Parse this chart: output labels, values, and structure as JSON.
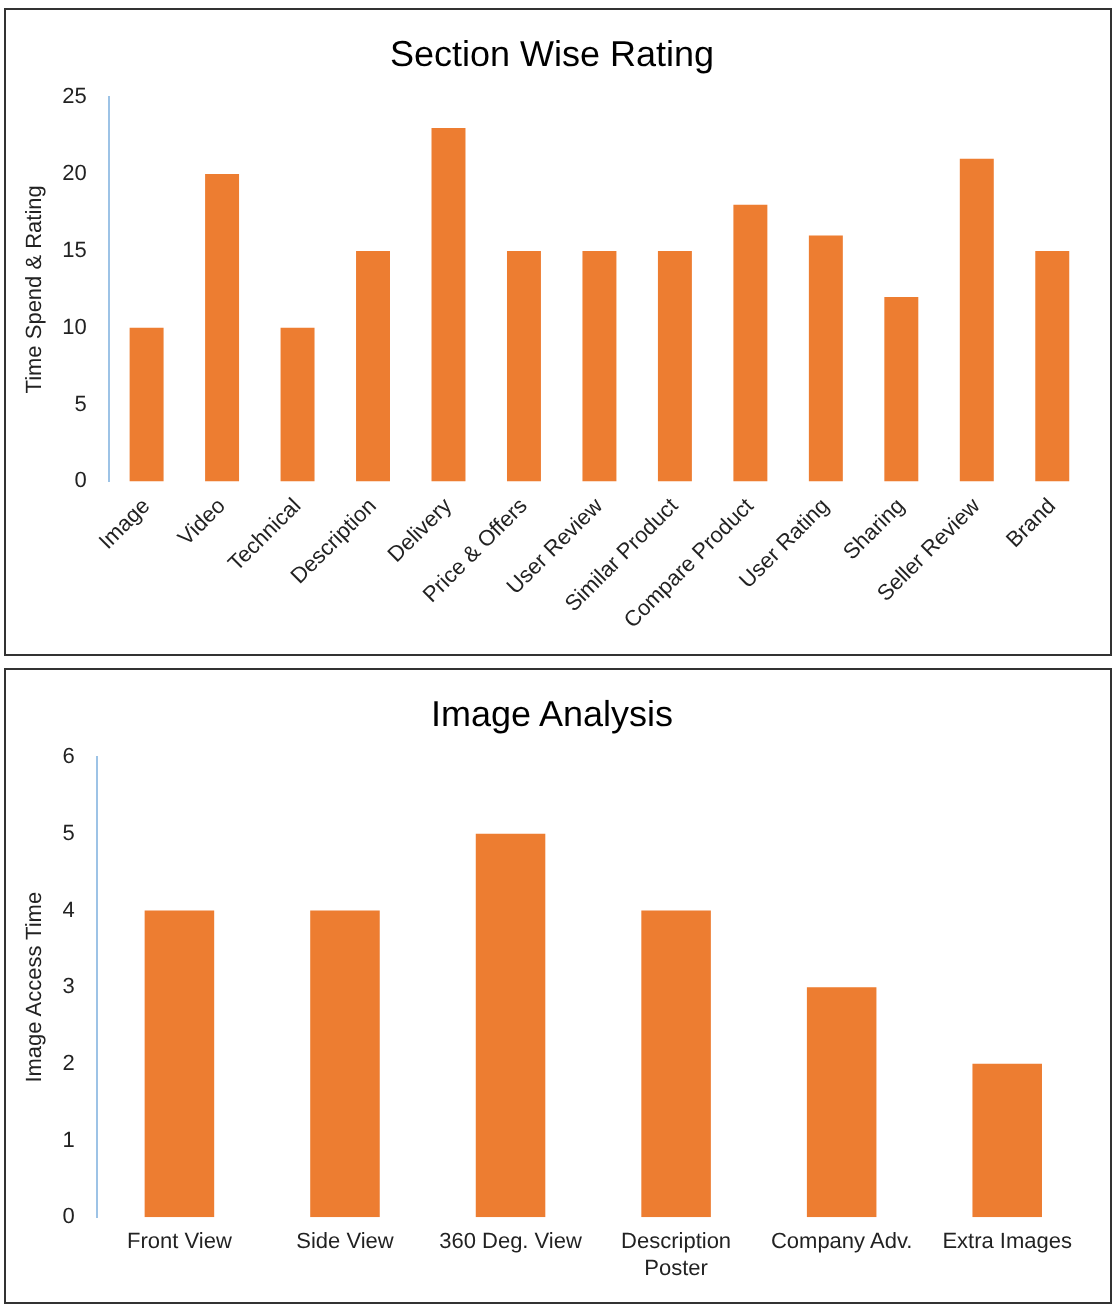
{
  "chart_data": [
    {
      "type": "bar",
      "title": "Section Wise Rating",
      "ylabel": "Time Spend & Rating",
      "categories": [
        "Image",
        "Video",
        "Technical",
        "Description",
        "Delivery",
        "Price & Offers",
        "User Review",
        "Similar Product",
        "Compare Product",
        "User Rating",
        "Sharing",
        "Seller Review",
        "Brand"
      ],
      "values": [
        10,
        20,
        10,
        15,
        23,
        15,
        15,
        15,
        18,
        16,
        12,
        21,
        15
      ],
      "color": "#ed7d31",
      "ylim": [
        0,
        25
      ],
      "yticks": [
        0,
        5,
        10,
        15,
        20,
        25
      ],
      "grid": false,
      "legend": false
    },
    {
      "type": "bar",
      "title": "Image Analysis",
      "ylabel": "Image Access Time",
      "categories": [
        "Front View",
        "Side View",
        "360 Deg. View",
        "Description Poster",
        "Company Adv.",
        "Extra Images"
      ],
      "values": [
        4,
        4,
        5,
        4,
        3,
        2
      ],
      "color": "#ed7d31",
      "ylim": [
        0,
        6
      ],
      "yticks": [
        0,
        1,
        2,
        3,
        4,
        5,
        6
      ],
      "grid": false,
      "legend": false
    }
  ]
}
